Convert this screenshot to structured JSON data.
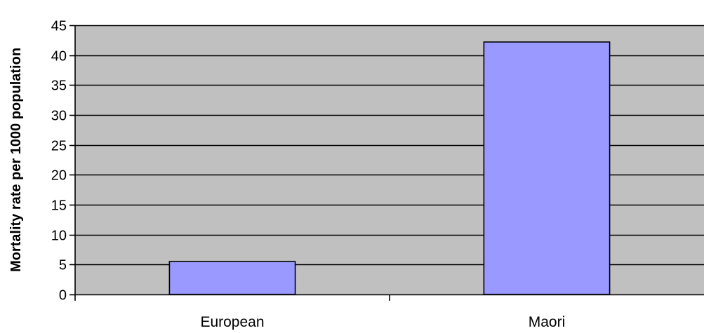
{
  "chart_data": {
    "type": "bar",
    "title": "",
    "xlabel": "",
    "ylabel": "Mortality rate per 1000 population",
    "categories": [
      "European",
      "Maori"
    ],
    "values": [
      5.5,
      42.2
    ],
    "ylim": [
      0,
      45
    ],
    "yticks": [
      0,
      5,
      10,
      15,
      20,
      25,
      30,
      35,
      40,
      45
    ],
    "grid": true,
    "legend": "none",
    "colors": {
      "bar_fill": "#9999FF",
      "bar_stroke": "#000000",
      "plot_background": "#C0C0C0",
      "gridline": "#000000"
    }
  }
}
